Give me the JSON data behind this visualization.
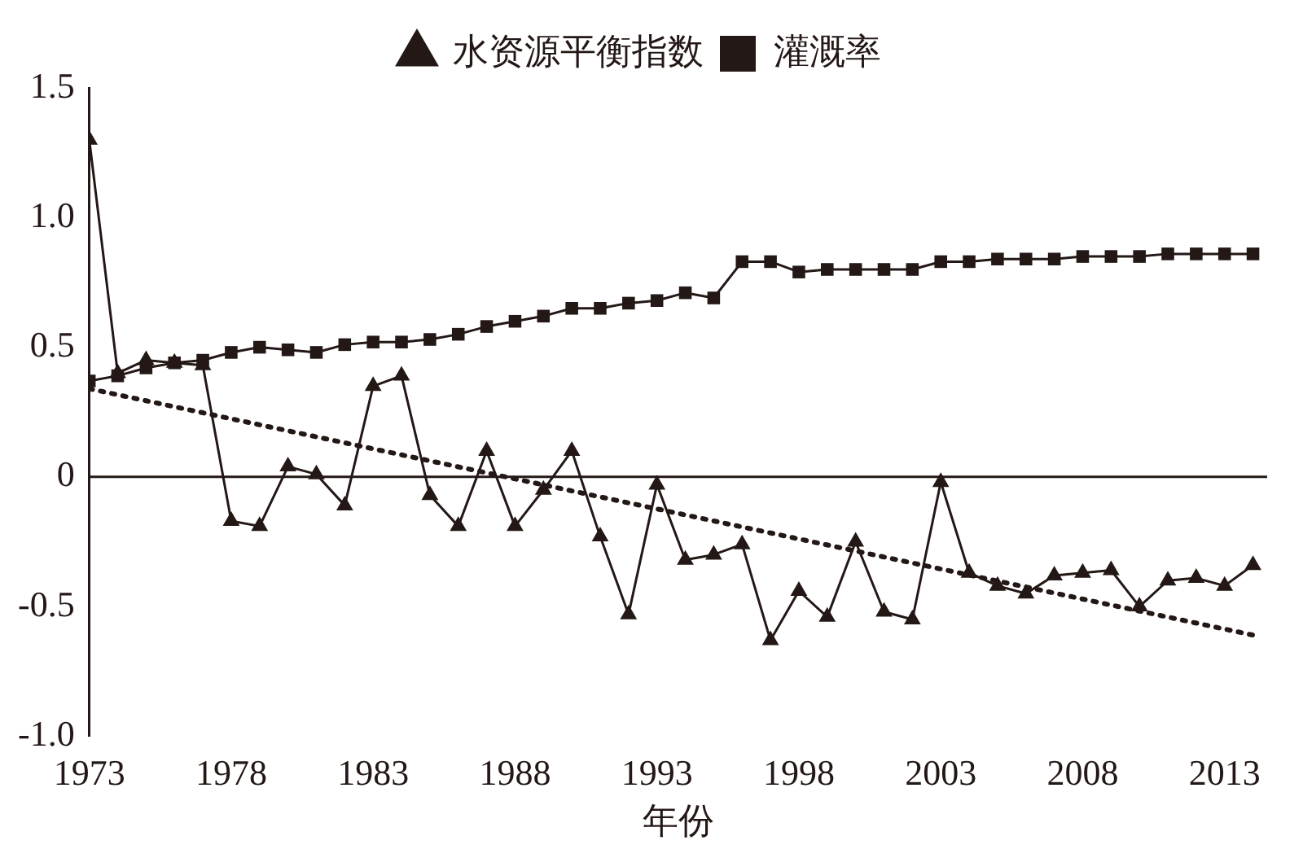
{
  "chart_data": {
    "type": "line",
    "xlabel": "年份",
    "x": [
      1973,
      1974,
      1975,
      1976,
      1977,
      1978,
      1979,
      1980,
      1981,
      1982,
      1983,
      1984,
      1985,
      1986,
      1987,
      1988,
      1989,
      1990,
      1991,
      1992,
      1993,
      1994,
      1995,
      1996,
      1997,
      1998,
      1999,
      2000,
      2001,
      2002,
      2003,
      2004,
      2005,
      2006,
      2007,
      2008,
      2009,
      2010,
      2011,
      2012,
      2013,
      2014
    ],
    "series": [
      {
        "name": "水资源平衡指数",
        "color": "#231815",
        "marker": "triangle",
        "values": [
          1.3,
          0.4,
          0.45,
          0.44,
          0.43,
          -0.17,
          -0.19,
          0.04,
          0.01,
          -0.11,
          0.35,
          0.39,
          -0.07,
          -0.19,
          0.1,
          -0.19,
          -0.05,
          0.1,
          -0.23,
          -0.53,
          -0.03,
          -0.32,
          -0.3,
          -0.26,
          -0.63,
          -0.44,
          -0.54,
          -0.25,
          -0.52,
          -0.55,
          -0.02,
          -0.37,
          -0.42,
          -0.45,
          -0.38,
          -0.37,
          -0.36,
          -0.5,
          -0.4,
          -0.39,
          -0.42,
          -0.34
        ]
      },
      {
        "name": "灌溉率",
        "color": "#231815",
        "marker": "square",
        "values": [
          0.37,
          0.39,
          0.42,
          0.44,
          0.45,
          0.48,
          0.5,
          0.49,
          0.48,
          0.51,
          0.52,
          0.52,
          0.53,
          0.55,
          0.58,
          0.6,
          0.62,
          0.65,
          0.65,
          0.67,
          0.68,
          0.71,
          0.69,
          0.83,
          0.83,
          0.79,
          0.8,
          0.8,
          0.8,
          0.8,
          0.83,
          0.83,
          0.84,
          0.84,
          0.84,
          0.85,
          0.85,
          0.85,
          0.86,
          0.86,
          0.86,
          0.86
        ]
      },
      {
        "color": "#231815",
        "marker": "none",
        "line_style": "dotted",
        "x": [
          1973,
          2014
        ],
        "values": [
          0.34,
          -0.61
        ]
      }
    ],
    "xlim": [
      1973,
      2014.5
    ],
    "xticks": [
      1973,
      1978,
      1983,
      1988,
      1993,
      1998,
      2003,
      2008,
      2013
    ],
    "ylim": [
      -1.0,
      1.5
    ],
    "yticks": [
      {
        "value": -1.0,
        "label": "-1.0"
      },
      -0.5,
      0,
      0.5,
      {
        "value": 1.0,
        "label": "1.0"
      },
      1.5
    ],
    "ref_lines": [
      {
        "axis": "y",
        "value": 0,
        "color": "#231815"
      }
    ],
    "grid": false,
    "legend": "top"
  }
}
